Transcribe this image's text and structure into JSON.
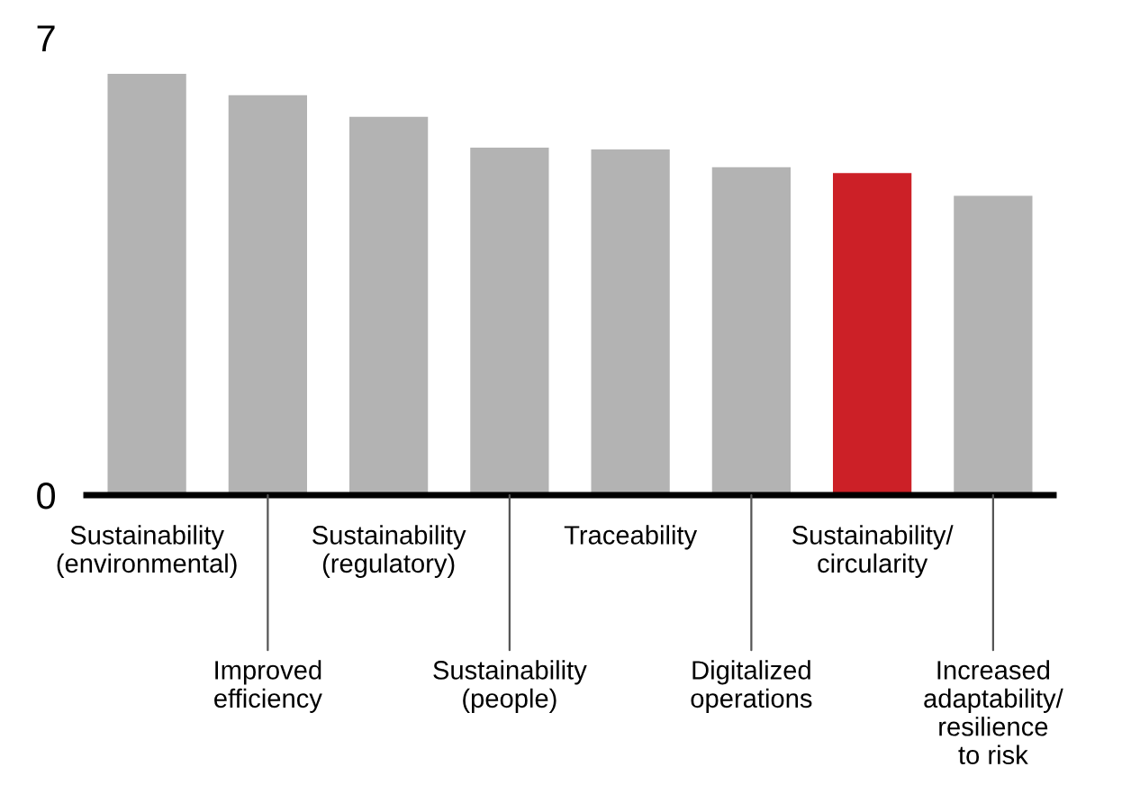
{
  "chart_data": {
    "type": "bar",
    "categories": [
      "Sustainability\n(environmental)",
      "Improved\nefficiency",
      "Sustainability\n(regulatory)",
      "Sustainability\n(people)",
      "Traceability",
      "Digitalized\noperations",
      "Sustainability/\ncircularity",
      "Increased\nadaptability/\nresilience\nto risk"
    ],
    "values": [
      6.45,
      6.12,
      5.79,
      5.32,
      5.29,
      5.02,
      4.93,
      4.58
    ],
    "colors": [
      "#b3b3b3",
      "#b3b3b3",
      "#b3b3b3",
      "#b3b3b3",
      "#b3b3b3",
      "#b3b3b3",
      "#cc2027",
      "#b3b3b3"
    ],
    "ylim": [
      0,
      7
    ],
    "yticks": [
      0,
      7
    ],
    "grid": false
  }
}
